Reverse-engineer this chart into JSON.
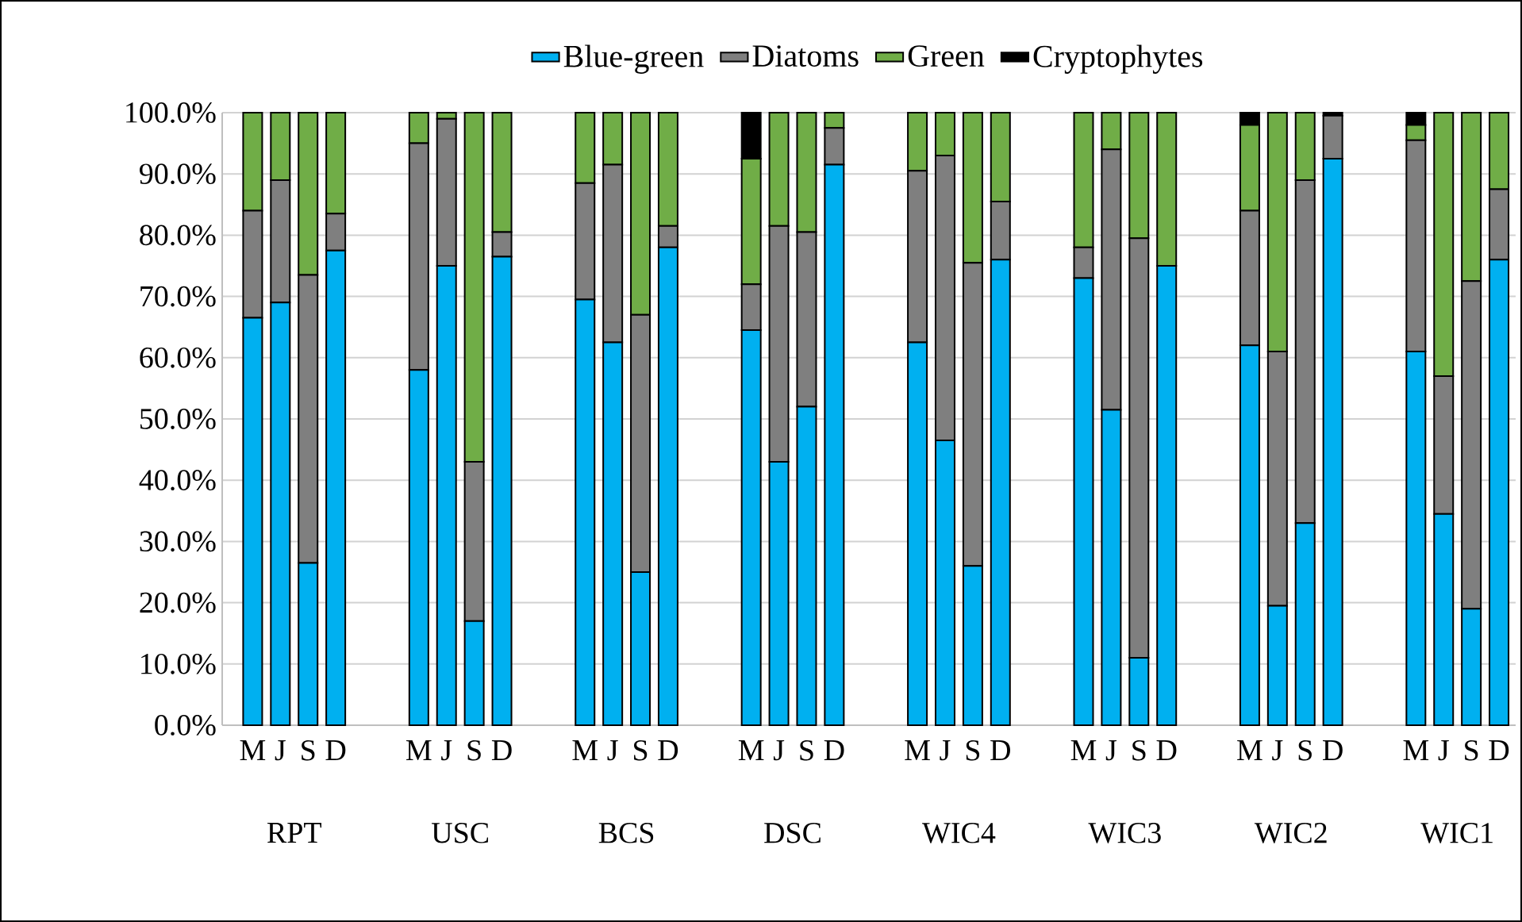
{
  "chart_data": {
    "type": "bar",
    "stacked": true,
    "categories": [
      "M",
      "J",
      "S",
      "D",
      null,
      null,
      "M",
      "J",
      "S",
      "D",
      null,
      null,
      "M",
      "J",
      "S",
      "D",
      null,
      null,
      "M",
      "J",
      "S",
      "D",
      null,
      null,
      "M",
      "J",
      "S",
      "D",
      null,
      null,
      "M",
      "J",
      "S",
      "D",
      null,
      null,
      "M",
      "J",
      "S",
      "D",
      null,
      null,
      "M",
      "J",
      "S",
      "D"
    ],
    "series": [
      {
        "name": "Blue-green",
        "color": "#00b0f0",
        "values": [
          66.5,
          69,
          26.5,
          77.5,
          null,
          null,
          58,
          75,
          17,
          76.5,
          null,
          null,
          69.5,
          62.5,
          25,
          78,
          null,
          null,
          64.5,
          43,
          52,
          91.5,
          null,
          null,
          62.5,
          46.5,
          26,
          76,
          null,
          null,
          73,
          51.5,
          11,
          75,
          null,
          null,
          62,
          19.5,
          33,
          92.5,
          null,
          null,
          61,
          34.5,
          19,
          76
        ]
      },
      {
        "name": "Diatoms",
        "color": "#7f7f7f",
        "values": [
          17.5,
          20,
          47,
          6,
          null,
          null,
          37,
          24,
          26,
          4,
          null,
          null,
          19,
          29,
          42,
          3.5,
          null,
          null,
          7.5,
          38.5,
          28.5,
          6,
          null,
          null,
          28,
          46.5,
          49.5,
          9.5,
          null,
          null,
          5,
          42.5,
          68.5,
          0,
          null,
          null,
          22,
          41.5,
          56,
          7,
          null,
          null,
          34.5,
          22.5,
          53.5,
          11.5
        ]
      },
      {
        "name": "Green",
        "color": "#70ad47",
        "values": [
          16,
          11,
          26.5,
          16.5,
          null,
          null,
          5,
          1,
          57,
          19.5,
          null,
          null,
          11.5,
          8.5,
          33,
          18.5,
          null,
          null,
          20.5,
          18.5,
          19.5,
          2.5,
          null,
          null,
          9.5,
          7,
          24.5,
          14.5,
          null,
          null,
          22,
          6,
          20.5,
          25,
          null,
          null,
          14,
          39,
          11,
          0,
          null,
          null,
          2.5,
          43,
          27.5,
          12.5
        ]
      },
      {
        "name": "Cryptophytes",
        "color": "#000000",
        "values": [
          0,
          0,
          0,
          0,
          null,
          null,
          0,
          0,
          0,
          0,
          null,
          null,
          0,
          0,
          0,
          0,
          null,
          null,
          7.5,
          0,
          0,
          0,
          null,
          null,
          0,
          0,
          0,
          0,
          null,
          null,
          0,
          0,
          0,
          0,
          null,
          null,
          2,
          0,
          0,
          0.5,
          null,
          null,
          2,
          0,
          0,
          0
        ]
      }
    ],
    "ylim": [
      0,
      100
    ],
    "yticks": [
      {
        "value": 0,
        "label": "0.0%"
      },
      {
        "value": 10,
        "label": "10.0%"
      },
      {
        "value": 20,
        "label": "20.0%"
      },
      {
        "value": 30,
        "label": "30.0%"
      },
      {
        "value": 40,
        "label": "40.0%"
      },
      {
        "value": 50,
        "label": "50.0%"
      },
      {
        "value": 60,
        "label": "60.0%"
      },
      {
        "value": 70,
        "label": "70.0%"
      },
      {
        "value": 80,
        "label": "80.0%"
      },
      {
        "value": 90,
        "label": "90.0%"
      },
      {
        "value": 100,
        "label": "100.0%"
      }
    ],
    "grid": "y",
    "legend": "top",
    "annotations": [
      "RPT",
      "USC",
      "BCS",
      "DSC",
      "WIC4",
      "WIC3",
      "WIC2",
      "WIC1"
    ]
  }
}
